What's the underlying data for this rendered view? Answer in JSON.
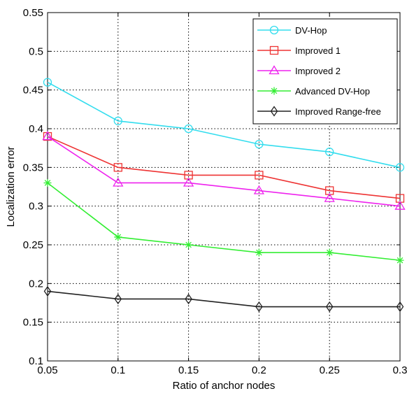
{
  "chart_data": {
    "type": "line",
    "title": "",
    "xlabel": "Ratio of anchor nodes",
    "ylabel": "Localization error",
    "xlim": [
      0.05,
      0.3
    ],
    "ylim": [
      0.1,
      0.55
    ],
    "xticks": [
      0.05,
      0.1,
      0.15,
      0.2,
      0.25,
      0.3
    ],
    "xtick_labels": [
      "0.05",
      "0.1",
      "0.15",
      "0.2",
      "0.25",
      "0.3"
    ],
    "yticks": [
      0.1,
      0.15,
      0.2,
      0.25,
      0.3,
      0.35,
      0.4,
      0.45,
      0.5,
      0.55
    ],
    "ytick_labels": [
      "0.1",
      "0.15",
      "0.2",
      "0.25",
      "0.3",
      "0.35",
      "0.4",
      "0.45",
      "0.5",
      "0.55"
    ],
    "grid": true,
    "legend_position": "top-right",
    "x": [
      0.05,
      0.1,
      0.15,
      0.2,
      0.25,
      0.3
    ],
    "series": [
      {
        "name": "DV-Hop",
        "color": "#33ddee",
        "marker": "circle",
        "values": [
          0.46,
          0.41,
          0.4,
          0.38,
          0.37,
          0.35
        ]
      },
      {
        "name": "Improved 1",
        "color": "#ee3333",
        "marker": "square",
        "values": [
          0.39,
          0.35,
          0.34,
          0.34,
          0.32,
          0.31
        ]
      },
      {
        "name": "Improved 2",
        "color": "#ee22ee",
        "marker": "triangle",
        "values": [
          0.39,
          0.33,
          0.33,
          0.32,
          0.31,
          0.3
        ]
      },
      {
        "name": "Advanced DV-Hop",
        "color": "#33ee33",
        "marker": "star",
        "values": [
          0.33,
          0.26,
          0.25,
          0.24,
          0.24,
          0.23
        ]
      },
      {
        "name": "Improved Range-free",
        "color": "#222222",
        "marker": "diamond",
        "values": [
          0.19,
          0.18,
          0.18,
          0.17,
          0.17,
          0.17
        ]
      }
    ]
  }
}
